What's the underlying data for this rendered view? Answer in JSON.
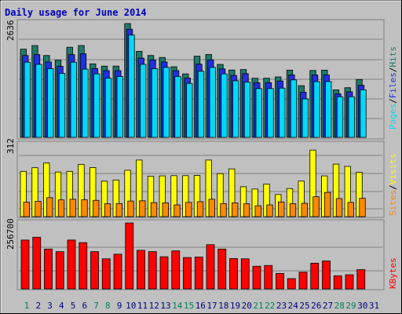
{
  "chart_data": [
    {
      "type": "bar",
      "title": "Daily usage for June 2014",
      "panel": "pages-files-hits",
      "categories": [
        "1",
        "2",
        "3",
        "4",
        "5",
        "6",
        "7",
        "8",
        "9",
        "10",
        "11",
        "12",
        "13",
        "14",
        "15",
        "16",
        "17",
        "18",
        "19",
        "20",
        "21",
        "22",
        "23",
        "24",
        "25",
        "26",
        "27",
        "28",
        "29",
        "30",
        "31"
      ],
      "ymax_label": "2636",
      "ymax": 2636,
      "legend": [
        "Pages",
        "Files",
        "Hits"
      ],
      "series": [
        {
          "name": "Hits",
          "color": "#1e7a6a",
          "values": [
            2043,
            2126,
            1896,
            1788,
            2087,
            2126,
            1703,
            1650,
            1650,
            2636,
            1992,
            1896,
            1850,
            1635,
            1470,
            1880,
            1920,
            1690,
            1560,
            1570,
            1370,
            1370,
            1400,
            1557,
            1197,
            1550,
            1557,
            1100,
            1150,
            1340,
            0
          ]
        },
        {
          "name": "Files",
          "color": "#2030e0",
          "values": [
            1950,
            1970,
            1800,
            1700,
            1970,
            1990,
            1650,
            1600,
            1600,
            2560,
            1890,
            1850,
            1800,
            1600,
            1430,
            1750,
            1850,
            1640,
            1490,
            1530,
            1320,
            1320,
            1360,
            1500,
            1100,
            1500,
            1500,
            1060,
            1110,
            1260,
            0
          ]
        },
        {
          "name": "Pages",
          "color": "#00d8f8",
          "values": [
            1850,
            1800,
            1700,
            1590,
            1850,
            1690,
            1580,
            1480,
            1520,
            2480,
            1800,
            1700,
            1730,
            1520,
            1360,
            1640,
            1730,
            1580,
            1420,
            1390,
            1240,
            1240,
            1250,
            1440,
            1000,
            1400,
            1400,
            1050,
            1050,
            1210,
            0
          ]
        }
      ]
    },
    {
      "type": "bar",
      "panel": "sites-visits",
      "categories": [
        "1",
        "2",
        "3",
        "4",
        "5",
        "6",
        "7",
        "8",
        "9",
        "10",
        "11",
        "12",
        "13",
        "14",
        "15",
        "16",
        "17",
        "18",
        "19",
        "20",
        "21",
        "22",
        "23",
        "24",
        "25",
        "26",
        "27",
        "28",
        "29",
        "30",
        "31"
      ],
      "ymax_label": "312",
      "ymax": 312,
      "legend": [
        "Sites",
        "Visits"
      ],
      "series": [
        {
          "name": "Visits",
          "color": "#ffff00",
          "values": [
            200,
            216,
            237,
            197,
            200,
            231,
            217,
            157,
            162,
            205,
            250,
            179,
            180,
            181,
            181,
            182,
            250,
            190,
            211,
            132,
            122,
            144,
            98,
            124,
            157,
            294,
            180,
            232,
            222,
            196,
            0
          ]
        },
        {
          "name": "Sites",
          "color": "#ff8800",
          "values": [
            64,
            68,
            84,
            74,
            77,
            75,
            72,
            57,
            58,
            69,
            70,
            62,
            61,
            52,
            63,
            66,
            77,
            58,
            61,
            57,
            48,
            52,
            65,
            57,
            59,
            88,
            107,
            80,
            63,
            81,
            0
          ]
        }
      ]
    },
    {
      "type": "bar",
      "panel": "kbytes",
      "categories": [
        "1",
        "2",
        "3",
        "4",
        "5",
        "6",
        "7",
        "8",
        "9",
        "10",
        "11",
        "12",
        "13",
        "14",
        "15",
        "16",
        "17",
        "18",
        "19",
        "20",
        "21",
        "22",
        "23",
        "24",
        "25",
        "26",
        "27",
        "28",
        "29",
        "30",
        "31"
      ],
      "ymax_label": "256700",
      "ymax": 256700,
      "legend": [
        "KBytes"
      ],
      "series": [
        {
          "name": "KBytes",
          "color": "#ff0000",
          "values": [
            190000,
            201000,
            155000,
            145000,
            190000,
            180000,
            145000,
            117000,
            135000,
            256700,
            150000,
            145000,
            125000,
            148000,
            122000,
            124000,
            172000,
            155000,
            118000,
            117000,
            88000,
            91000,
            60000,
            40000,
            65000,
            100000,
            109000,
            51000,
            55000,
            75000,
            0
          ]
        }
      ]
    }
  ],
  "x_label_colors": {
    "weekday": "#000080",
    "weekend": "#00805a"
  },
  "weekend_days": [
    "1",
    "7",
    "8",
    "14",
    "15",
    "21",
    "22",
    "28",
    "29"
  ]
}
